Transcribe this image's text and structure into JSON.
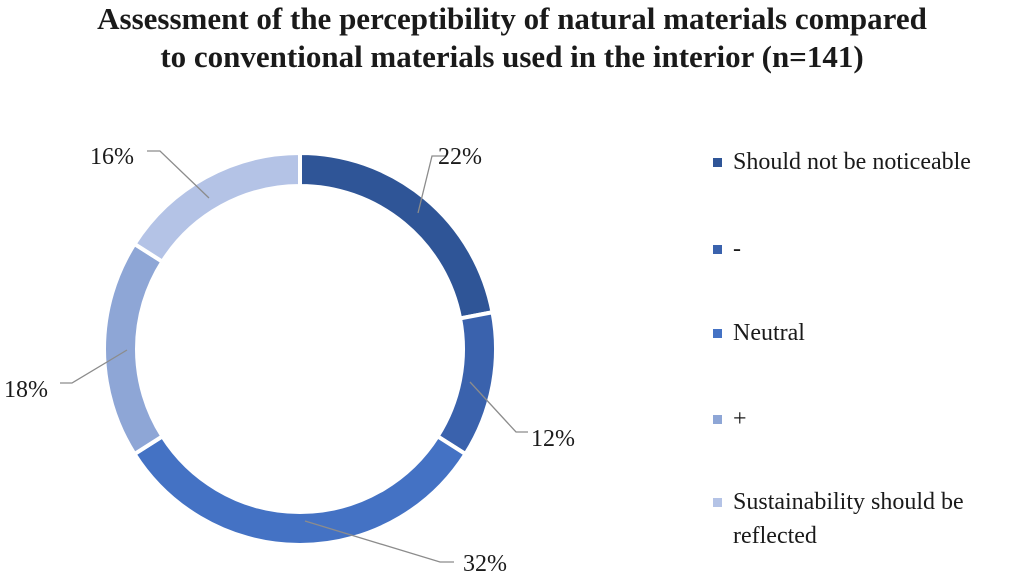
{
  "chart_data": {
    "type": "pie",
    "variant": "donut",
    "title": "Assessment of the perceptibility of natural materials compared\nto conventional materials used in the interior (n=141)",
    "categories": [
      "Should not be noticeable",
      "-",
      "Neutral",
      "+",
      "Sustainability should be reflected"
    ],
    "values": [
      22,
      12,
      32,
      18,
      16
    ],
    "value_labels": [
      "22%",
      "12%",
      "32%",
      "18%",
      "16%"
    ],
    "colors": [
      "#2f5597",
      "#3a62ad",
      "#4472c4",
      "#8ea6d6",
      "#b4c3e6"
    ],
    "legend_position": "right"
  }
}
